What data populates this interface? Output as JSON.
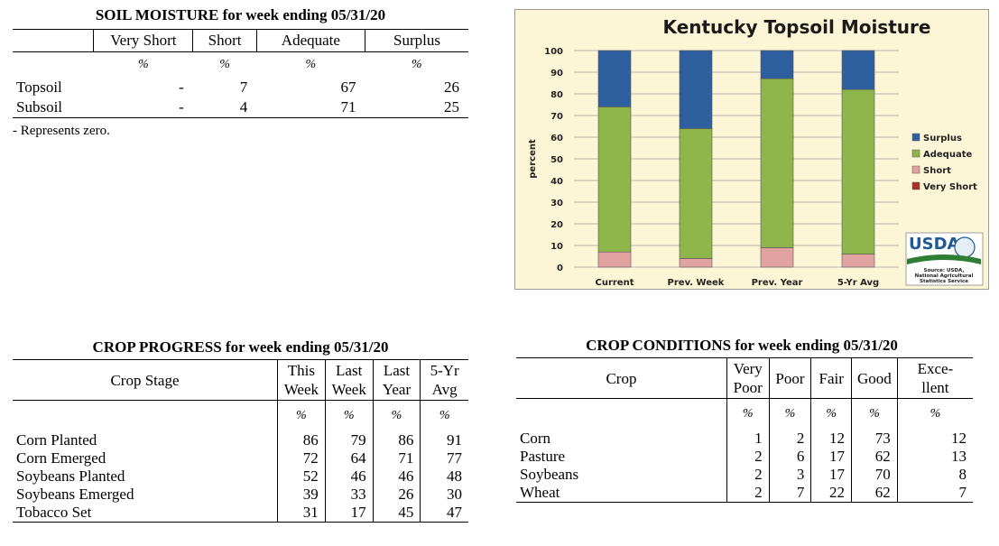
{
  "soil": {
    "title": "SOIL MOISTURE for week ending 05/31/20",
    "columns": [
      "Very Short",
      "Short",
      "Adequate",
      "Surplus"
    ],
    "units": [
      "%",
      "%",
      "%",
      "%"
    ],
    "rows": [
      {
        "label": "Topsoil",
        "values": [
          "-",
          "7",
          "67",
          "26"
        ]
      },
      {
        "label": "Subsoil",
        "values": [
          "-",
          "4",
          "71",
          "25"
        ]
      }
    ],
    "note": "- Represents zero."
  },
  "chart_data": {
    "type": "bar",
    "stacked": true,
    "title": "Kentucky Topsoil Moisture",
    "xlabel": "",
    "ylabel": "percent",
    "ylim": [
      0,
      100
    ],
    "yticks": [
      "0",
      "10",
      "20",
      "30",
      "40",
      "50",
      "60",
      "70",
      "80",
      "90",
      "100"
    ],
    "categories": [
      "Current",
      "Prev. Week",
      "Prev. Year",
      "5-Yr Avg"
    ],
    "series": [
      {
        "name": "Very Short",
        "color": "#a93226",
        "values": [
          0,
          0,
          0,
          0
        ]
      },
      {
        "name": "Short",
        "color": "#e0a3a0",
        "values": [
          7,
          4,
          9,
          6
        ]
      },
      {
        "name": "Adequate",
        "color": "#8db54a",
        "values": [
          67,
          60,
          78,
          76
        ]
      },
      {
        "name": "Surplus",
        "color": "#2e5f9e",
        "values": [
          26,
          36,
          13,
          18
        ]
      }
    ],
    "legend_position": "right",
    "legend_order": [
      "Surplus",
      "Adequate",
      "Short",
      "Very Short"
    ],
    "grid": true,
    "background": "#fdf6d6",
    "logo_text": "USDA",
    "source": [
      "Source: USDA,",
      "National Agricultural",
      "Statistics Service"
    ]
  },
  "progress": {
    "title": "CROP PROGRESS for week ending 05/31/20",
    "columns": [
      {
        "line1": "Crop Stage",
        "line2": ""
      },
      {
        "line1": "This",
        "line2": "Week"
      },
      {
        "line1": "Last",
        "line2": "Week"
      },
      {
        "line1": "Last",
        "line2": "Year"
      },
      {
        "line1": "5-Yr",
        "line2": "Avg"
      }
    ],
    "units": [
      "%",
      "%",
      "%",
      "%"
    ],
    "rows": [
      {
        "label": "Corn Planted",
        "values": [
          "86",
          "79",
          "86",
          "91"
        ]
      },
      {
        "label": "Corn Emerged",
        "values": [
          "72",
          "64",
          "71",
          "77"
        ]
      },
      {
        "label": "Soybeans Planted",
        "values": [
          "52",
          "46",
          "46",
          "48"
        ]
      },
      {
        "label": "Soybeans Emerged",
        "values": [
          "39",
          "33",
          "26",
          "30"
        ]
      },
      {
        "label": "Tobacco Set",
        "values": [
          "31",
          "17",
          "45",
          "47"
        ]
      }
    ]
  },
  "conditions": {
    "title": "CROP CONDITIONS for week ending 05/31/20",
    "columns": [
      {
        "line1": "Crop",
        "line2": ""
      },
      {
        "line1": "Very",
        "line2": "Poor"
      },
      {
        "line1": "Poor",
        "line2": ""
      },
      {
        "line1": "Fair",
        "line2": ""
      },
      {
        "line1": "Good",
        "line2": ""
      },
      {
        "line1": "Exce-",
        "line2": "llent"
      }
    ],
    "units": [
      "%",
      "%",
      "%",
      "%",
      "%"
    ],
    "rows": [
      {
        "label": "Corn",
        "values": [
          "1",
          "2",
          "12",
          "73",
          "12"
        ]
      },
      {
        "label": "Pasture",
        "values": [
          "2",
          "6",
          "17",
          "62",
          "13"
        ]
      },
      {
        "label": "Soybeans",
        "values": [
          "2",
          "3",
          "17",
          "70",
          "8"
        ]
      },
      {
        "label": "Wheat",
        "values": [
          "2",
          "7",
          "22",
          "62",
          "7"
        ]
      }
    ]
  }
}
